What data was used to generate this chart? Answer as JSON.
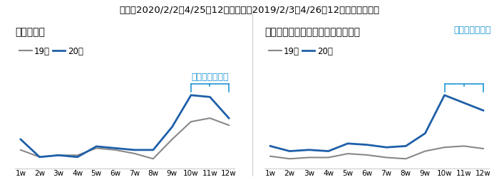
{
  "title": "期間：2020/2/2～4/25の12週間および2019/2/3～4/26の12週間の前年比較",
  "weeks": [
    "1w",
    "2w",
    "3w",
    "4w",
    "5w",
    "6w",
    "7w",
    "8w",
    "9w",
    "10w",
    "11w",
    "12w"
  ],
  "left_title": "全業種総計",
  "left_19": [
    62,
    58,
    59,
    59,
    63,
    62,
    60,
    57,
    68,
    78,
    80,
    76
  ],
  "left_20": [
    68,
    58,
    59,
    58,
    64,
    63,
    62,
    62,
    75,
    93,
    92,
    80
  ],
  "left_annotation": "前年比１３０％",
  "right_title": "「アルバイト応募が増加」した分野",
  "right_annotation": "前年比２２８％",
  "right_19": [
    42,
    40,
    41,
    41,
    44,
    43,
    41,
    40,
    46,
    49,
    50,
    48
  ],
  "right_20": [
    50,
    46,
    47,
    46,
    52,
    51,
    49,
    50,
    60,
    90,
    84,
    78
  ],
  "color_19": "#888888",
  "color_20": "#1e5fa8",
  "annotation_color": "#2196d4",
  "bg_color": "#ffffff",
  "title_fontsize": 9.5,
  "subtitle_fontsize": 10,
  "legend_fontsize": 8.5,
  "tick_fontsize": 7.5,
  "annotation_fontsize": 9
}
